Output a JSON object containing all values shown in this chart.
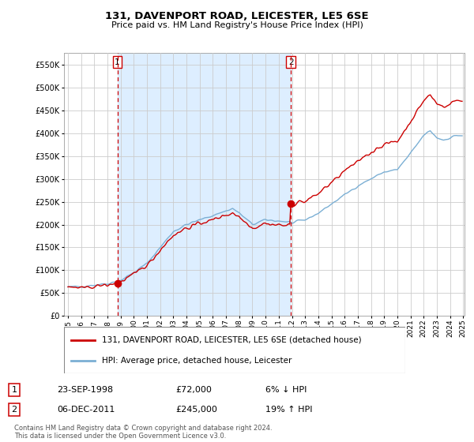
{
  "title": "131, DAVENPORT ROAD, LEICESTER, LE5 6SE",
  "subtitle": "Price paid vs. HM Land Registry's House Price Index (HPI)",
  "property_label": "131, DAVENPORT ROAD, LEICESTER, LE5 6SE (detached house)",
  "hpi_label": "HPI: Average price, detached house, Leicester",
  "sale1_date": "23-SEP-1998",
  "sale1_price": 72000,
  "sale1_note": "6% ↓ HPI",
  "sale2_date": "06-DEC-2011",
  "sale2_price": 245000,
  "sale2_note": "19% ↑ HPI",
  "footnote": "Contains HM Land Registry data © Crown copyright and database right 2024.\nThis data is licensed under the Open Government Licence v3.0.",
  "ylim": [
    0,
    575000
  ],
  "yticks": [
    0,
    50000,
    100000,
    150000,
    200000,
    250000,
    300000,
    350000,
    400000,
    450000,
    500000,
    550000
  ],
  "property_color": "#cc0000",
  "hpi_color": "#7bafd4",
  "vline_color": "#cc0000",
  "shade_color": "#ddeeff",
  "background_color": "#ffffff",
  "grid_color": "#cccccc",
  "sale1_year": 1998.75,
  "sale2_year": 2011.917
}
